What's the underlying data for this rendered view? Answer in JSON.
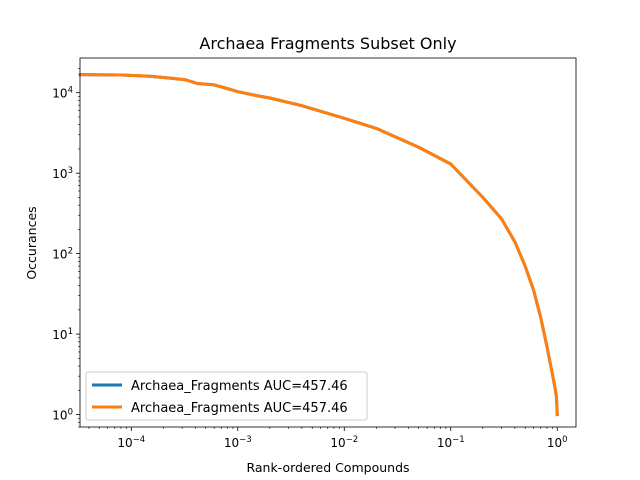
{
  "chart_data": {
    "type": "line",
    "title": "Archaea Fragments Subset Only",
    "xlabel": "Rank-ordered Compounds",
    "ylabel": "Occurances",
    "xscale": "log",
    "yscale": "log",
    "xlim": [
      3.3e-05,
      1.5
    ],
    "ylim": [
      0.7,
      27000
    ],
    "xticks": [
      {
        "value": 0.0001,
        "base": "10",
        "exp": "−4"
      },
      {
        "value": 0.001,
        "base": "10",
        "exp": "−3"
      },
      {
        "value": 0.01,
        "base": "10",
        "exp": "−2"
      },
      {
        "value": 0.1,
        "base": "10",
        "exp": "−1"
      },
      {
        "value": 1,
        "base": "10",
        "exp": "0"
      }
    ],
    "yticks": [
      {
        "value": 1,
        "base": "10",
        "exp": "0"
      },
      {
        "value": 10,
        "base": "10",
        "exp": "1"
      },
      {
        "value": 100,
        "base": "10",
        "exp": "2"
      },
      {
        "value": 1000,
        "base": "10",
        "exp": "3"
      },
      {
        "value": 10000,
        "base": "10",
        "exp": "4"
      }
    ],
    "legend_position": "lower-left",
    "series": [
      {
        "name": "Archaea_Fragments AUC=457.46",
        "color": "#1f77b4",
        "x": [
          3.3e-05,
          8e-05,
          0.00015,
          0.00025,
          0.00032,
          0.00042,
          0.0006,
          0.00085,
          0.001,
          0.0015,
          0.002,
          0.004,
          0.01,
          0.02,
          0.05,
          0.1,
          0.2,
          0.3,
          0.4,
          0.5,
          0.6,
          0.7,
          0.8,
          0.9,
          0.95,
          0.98,
          0.99,
          1.0
        ],
        "y": [
          16800,
          16600,
          16000,
          15000,
          14500,
          13000,
          12500,
          11000,
          10300,
          9200,
          8600,
          6900,
          4800,
          3600,
          2100,
          1300,
          500,
          270,
          140,
          70,
          35,
          16,
          7,
          3.2,
          2.2,
          1.7,
          1.4,
          1.0
        ]
      },
      {
        "name": "Archaea_Fragments AUC=457.46",
        "color": "#ff7f0e",
        "x": [
          3.3e-05,
          8e-05,
          0.00015,
          0.00025,
          0.00032,
          0.00042,
          0.0006,
          0.00085,
          0.001,
          0.0015,
          0.002,
          0.004,
          0.01,
          0.02,
          0.05,
          0.1,
          0.2,
          0.3,
          0.4,
          0.5,
          0.6,
          0.7,
          0.8,
          0.9,
          0.95,
          0.98,
          0.99,
          1.0
        ],
        "y": [
          16800,
          16600,
          16000,
          15000,
          14500,
          13000,
          12500,
          11000,
          10300,
          9200,
          8600,
          6900,
          4800,
          3600,
          2100,
          1300,
          500,
          270,
          140,
          70,
          35,
          16,
          7,
          3.2,
          2.2,
          1.7,
          1.4,
          1.0
        ]
      }
    ]
  }
}
